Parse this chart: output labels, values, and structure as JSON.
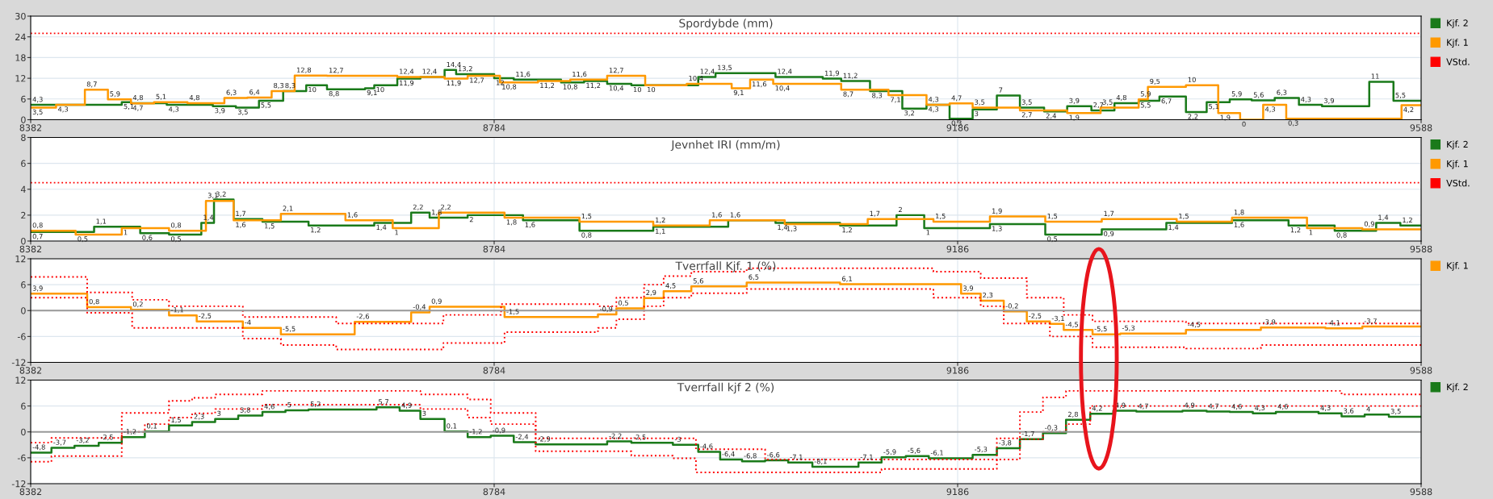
{
  "chart_data": [
    {
      "type": "step",
      "title": "Spordybde (mm)",
      "xlim": [
        8382,
        9588
      ],
      "xticks": [
        8382,
        8784,
        9186,
        9588
      ],
      "ylim": [
        0,
        30
      ],
      "yticks": [
        0,
        6,
        12,
        18,
        24,
        30
      ],
      "grid": true,
      "legend": "right",
      "ref_lines": [
        {
          "axis": "y",
          "value": 25,
          "label": "VStd.",
          "color": "#ff0000",
          "line_style": "dotted"
        }
      ],
      "series": [
        {
          "name": "Kjf. 2",
          "color": "#1a7a1a",
          "line_style": "solid",
          "x": [
            8382,
            8461,
            8469,
            8500,
            8540,
            8560,
            8580,
            8601,
            8621,
            8639,
            8672,
            8680,
            8700,
            8720,
            8741,
            8751,
            8784,
            8801,
            8842,
            8862,
            8882,
            8903,
            8961,
            8976,
            9028,
            9069,
            9085,
            9110,
            9138,
            9159,
            9179,
            9199,
            9220,
            9240,
            9261,
            9281,
            9302,
            9322,
            9343,
            9361,
            9384,
            9402,
            9422,
            9441,
            9461,
            9482,
            9502,
            9543,
            9564,
            9588
          ],
          "values": [
            4.3,
            5.1,
            4.8,
            4.3,
            3.9,
            3.5,
            5.5,
            8.3,
            10,
            8.8,
            9.1,
            10,
            11.9,
            12.4,
            14.4,
            13.2,
            12,
            11.6,
            10.8,
            11.2,
            10.4,
            10,
            12.4,
            13.5,
            12.4,
            11.9,
            11.2,
            8.3,
            3.2,
            4.3,
            0.3,
            3,
            7,
            3.5,
            2.4,
            3.9,
            2.7,
            4.8,
            5.5,
            6.7,
            2.2,
            5.1,
            5.9,
            5.6,
            6.3,
            4.3,
            3.9,
            11,
            5.5,
            5.5
          ],
          "value_labels": [
            "4,3",
            "5,1",
            "4,8",
            "4,3",
            "3,9",
            "3,5",
            "5,5",
            "8,3",
            "10",
            "8,8",
            "9,1",
            "10",
            "11,9",
            "12,4",
            "14,4",
            "13,2",
            "12",
            "11,6",
            "10,8",
            "11,2",
            "10,4",
            "10",
            "12,4",
            "13,5",
            "12,4",
            "11,9",
            "11,2",
            "8,3",
            "3,2",
            "4,3",
            "0,3",
            "3",
            "7",
            "3,5",
            "2,4",
            "3,9",
            "2,7",
            "4,8",
            "5,5",
            "6,7",
            "2,2",
            "5,1",
            "5,9",
            "5,6",
            "6,3",
            "4,3",
            "3,9",
            "11",
            "5,5",
            null
          ]
        },
        {
          "name": "Kjf. 1",
          "color": "#ff9900",
          "line_style": "solid",
          "x": [
            8382,
            8404,
            8429,
            8449,
            8469,
            8489,
            8518,
            8550,
            8570,
            8591,
            8611,
            8639,
            8700,
            8741,
            8761,
            8789,
            8822,
            8850,
            8882,
            8915,
            8951,
            8990,
            9006,
            9026,
            9085,
            9126,
            9159,
            9179,
            9199,
            9240,
            9281,
            9310,
            9343,
            9351,
            9384,
            9412,
            9431,
            9451,
            9471,
            9571,
            9588
          ],
          "values": [
            3.5,
            4.3,
            8.7,
            5.9,
            4.7,
            5.1,
            4.8,
            6.3,
            6.4,
            8.3,
            12.8,
            12.7,
            12.4,
            11.9,
            12.7,
            10.8,
            11.2,
            11.6,
            12.7,
            10,
            10.4,
            9.1,
            11.6,
            10.4,
            8.7,
            7.1,
            4.3,
            4.7,
            3.5,
            2.7,
            1.9,
            3.5,
            5.9,
            9.5,
            10,
            1.9,
            0,
            4.3,
            0.3,
            4.2,
            4.2
          ],
          "value_labels": [
            "3,5",
            "4,3",
            "8,7",
            "5,9",
            "4,7",
            "5,1",
            "4,8",
            "6,3",
            "6,4",
            "8,3",
            "12,8",
            "12,7",
            "12,4",
            "11,9",
            "12,7",
            "10,8",
            "11,2",
            "11,6",
            "12,7",
            "10",
            "10,4",
            "9,1",
            "11,6",
            "10,4",
            "8,7",
            "7,1",
            "4,3",
            "4,7",
            "3,5",
            "2,7",
            "1,9",
            "3,5",
            "5,9",
            "9,5",
            "10",
            "1,9",
            "0",
            "4,3",
            "0,3",
            "4,2",
            null
          ]
        }
      ]
    },
    {
      "type": "step",
      "title": "Jevnhet IRI (mm/m)",
      "xlim": [
        8382,
        9588
      ],
      "xticks": [
        8382,
        8784,
        9186,
        9588
      ],
      "ylim": [
        0,
        8
      ],
      "yticks": [
        0,
        2,
        4,
        6,
        8
      ],
      "grid": true,
      "legend": "right",
      "ref_lines": [
        {
          "axis": "y",
          "value": 4.5,
          "label": "VStd.",
          "color": "#ff0000",
          "line_style": "dotted"
        }
      ],
      "series": [
        {
          "name": "Kjf. 2",
          "color": "#1a7a1a",
          "line_style": "solid",
          "x": [
            8382,
            8437,
            8477,
            8502,
            8530,
            8541,
            8558,
            8583,
            8623,
            8680,
            8712,
            8728,
            8761,
            8809,
            8858,
            8922,
            8987,
            9028,
            9084,
            9133,
            9157,
            9214,
            9262,
            9311,
            9367,
            9424,
            9473,
            9513,
            9549,
            9570,
            9588
          ],
          "values": [
            0.7,
            1.1,
            0.6,
            0.5,
            1.4,
            3.2,
            1.7,
            1.5,
            1.2,
            1.4,
            2.2,
            1.8,
            2,
            1.6,
            0.8,
            1.1,
            1.6,
            1.4,
            1.2,
            2,
            1,
            1.3,
            0.5,
            0.9,
            1.4,
            1.6,
            1.2,
            0.8,
            1.4,
            1.2,
            1.2
          ],
          "value_labels": [
            "0,7",
            "1,1",
            "0,6",
            "0,5",
            "1,4",
            "3,2",
            "1,7",
            "1,5",
            "1,2",
            "1,4",
            "2,2",
            "1,8",
            "2",
            "1,6",
            "0,8",
            "1,1",
            "1,6",
            "1,4",
            "1,2",
            "2",
            "1",
            "1,3",
            "0,5",
            "0,9",
            "1,4",
            "1,6",
            "1,2",
            "0,8",
            "1,4",
            "1,2",
            null
          ]
        },
        {
          "name": "Kjf. 1",
          "color": "#ff9900",
          "line_style": "solid",
          "x": [
            8382,
            8421,
            8461,
            8502,
            8534,
            8558,
            8599,
            8655,
            8696,
            8736,
            8793,
            8858,
            8922,
            8971,
            9036,
            9108,
            9165,
            9214,
            9262,
            9311,
            9376,
            9424,
            9489,
            9537,
            9588
          ],
          "values": [
            0.8,
            0.5,
            1,
            0.8,
            3.1,
            1.6,
            2.1,
            1.6,
            1,
            2.2,
            1.8,
            1.5,
            1.2,
            1.6,
            1.3,
            1.7,
            1.5,
            1.9,
            1.5,
            1.7,
            1.5,
            1.8,
            1,
            0.9,
            0.9
          ],
          "value_labels": [
            "0,8",
            "0,5",
            "1",
            "0,8",
            "3,1",
            "1,6",
            "2,1",
            "1,6",
            "1",
            "2,2",
            "1,8",
            "1,5",
            "1,2",
            "1,6",
            "1,3",
            "1,7",
            "1,5",
            "1,9",
            "1,5",
            "1,7",
            "1,5",
            "1,8",
            "1",
            "0,9",
            null
          ]
        }
      ]
    },
    {
      "type": "step",
      "title": "Tverrfall Kjf. 1 (%)",
      "xlim": [
        8382,
        9588
      ],
      "xticks": [
        8382,
        8784,
        9186,
        9588
      ],
      "ylim": [
        -12,
        12
      ],
      "yticks": [
        -12,
        -6,
        0,
        6,
        12
      ],
      "grid": true,
      "legend": "right",
      "ref_lines": [
        {
          "axis": "y",
          "value": 0,
          "color": "#999999",
          "line_style": "solid"
        }
      ],
      "series": [
        {
          "name": "Kjf. 1",
          "color": "#ff9900",
          "line_style": "solid",
          "x": [
            8382,
            8431,
            8469,
            8502,
            8526,
            8566,
            8599,
            8663,
            8712,
            8728,
            8793,
            8874,
            8890,
            8914,
            8931,
            8955,
            9003,
            9084,
            9189,
            9206,
            9226,
            9246,
            9266,
            9278,
            9303,
            9327,
            9384,
            9449,
            9505,
            9537,
            9588
          ],
          "values": [
            3.9,
            0.8,
            0.2,
            -1.1,
            -2.5,
            -4,
            -5.5,
            -2.6,
            -0.4,
            0.9,
            -1.5,
            -0.9,
            0.5,
            2.9,
            4.5,
            5.6,
            6.5,
            6.1,
            3.9,
            2.3,
            -0.2,
            -2.5,
            -3.1,
            -4.5,
            -5.5,
            -5.3,
            -4.5,
            -3.9,
            -4.1,
            -3.7,
            -3.7
          ],
          "value_labels": [
            "3,9",
            "0,8",
            "0,2",
            "-1,1",
            "-2,5",
            "-4",
            "-5,5",
            "-2,6",
            "-0,4",
            "0,9",
            "-1,5",
            "-0,9",
            "0,5",
            "2,9",
            "4,5",
            "5,6",
            "6,5",
            "6,1",
            "3,9",
            "2,3",
            "-0,2",
            "-2,5",
            "-3,1",
            "-4,5",
            "-5,5",
            "-5,3",
            "-4,5",
            "-3,9",
            "-4,1",
            "-3,7",
            null
          ]
        },
        {
          "color": "#ff0000",
          "line_style": "dotted",
          "x": [
            8382,
            8431,
            8470,
            8502,
            8566,
            8647,
            8740,
            8790,
            8874,
            8890,
            8914,
            8931,
            8955,
            9003,
            9165,
            9206,
            9246,
            9278,
            9303,
            9384,
            9588
          ],
          "values": [
            7.8,
            4.2,
            2.5,
            1,
            -1.5,
            -3,
            -1,
            1.5,
            1,
            3,
            6,
            8,
            9,
            9.8,
            9,
            7.5,
            3,
            -1,
            -2.5,
            -3,
            -3
          ]
        },
        {
          "color": "#ff0000",
          "line_style": "dotted",
          "x": [
            8382,
            8431,
            8470,
            8566,
            8599,
            8647,
            8740,
            8793,
            8874,
            8890,
            8914,
            8931,
            8955,
            9003,
            9165,
            9206,
            9226,
            9266,
            9303,
            9384,
            9449,
            9588
          ],
          "values": [
            3,
            -0.5,
            -4,
            -6.5,
            -8,
            -9,
            -7.5,
            -5,
            -4,
            -2,
            1,
            3,
            4,
            5,
            3,
            1,
            -3,
            -6,
            -8.5,
            -8.8,
            -8,
            -8
          ]
        }
      ]
    },
    {
      "type": "step",
      "title": "Tverrfall kjf 2 (%)",
      "xlim": [
        8382,
        9588
      ],
      "xticks": [
        8382,
        8784,
        9186,
        9588
      ],
      "ylim": [
        -12,
        12
      ],
      "yticks": [
        -12,
        -6,
        0,
        6,
        12
      ],
      "grid": true,
      "legend": "right",
      "ref_lines": [
        {
          "axis": "y",
          "value": 0,
          "color": "#999999",
          "line_style": "solid"
        }
      ],
      "series": [
        {
          "name": "Kjf. 2",
          "color": "#1a7a1a",
          "line_style": "solid",
          "x": [
            8382,
            8400,
            8420,
            8441,
            8461,
            8481,
            8502,
            8522,
            8542,
            8562,
            8583,
            8603,
            8623,
            8682,
            8702,
            8720,
            8741,
            8761,
            8781,
            8801,
            8820,
            8882,
            8903,
            8939,
            8961,
            8980,
            8999,
            9019,
            9039,
            9060,
            9100,
            9120,
            9141,
            9161,
            9199,
            9220,
            9240,
            9260,
            9280,
            9301,
            9321,
            9341,
            9381,
            9402,
            9422,
            9442,
            9462,
            9499,
            9519,
            9539,
            9560,
            9588
          ],
          "values": [
            -4.8,
            -3.7,
            -3.2,
            -2.5,
            -1.2,
            0.1,
            1.5,
            2.3,
            3,
            3.8,
            4.6,
            5,
            5.2,
            5.7,
            4.9,
            3,
            0.1,
            -1.2,
            -0.9,
            -2.4,
            -2.9,
            -2.2,
            -2.5,
            -3,
            -4.6,
            -6.4,
            -6.8,
            -6.6,
            -7.1,
            -8.1,
            -7.1,
            -5.9,
            -5.6,
            -6.1,
            -5.3,
            -3.8,
            -1.7,
            -0.3,
            2.8,
            4.2,
            4.9,
            4.7,
            4.9,
            4.7,
            4.6,
            4.3,
            4.6,
            4.3,
            3.6,
            4,
            3.5,
            3.5
          ],
          "value_labels": [
            "-4,8",
            "-3,7",
            "-3,2",
            "-2,5",
            "-1,2",
            "0,1",
            "1,5",
            "2,3",
            "3",
            "3,8",
            "4,6",
            "5",
            "5,2",
            "5,7",
            "4,9",
            "3",
            "0,1",
            "-1,2",
            "-0,9",
            "-2,4",
            "-2,9",
            "-2,2",
            "-2,5",
            "-3",
            "-4,6",
            "-6,4",
            "-6,8",
            "-6,6",
            "-7,1",
            "-8,1",
            "-7,1",
            "-5,9",
            "-5,6",
            "-6,1",
            "-5,3",
            "-3,8",
            "-1,7",
            "-0,3",
            "2,8",
            "4,2",
            "4,9",
            "4,7",
            "4,9",
            "4,7",
            "4,6",
            "4,3",
            "4,6",
            "4,3",
            "3,6",
            "4",
            "3,5",
            null
          ]
        },
        {
          "color": "#ff0000",
          "line_style": "dotted",
          "x": [
            8382,
            8400,
            8461,
            8502,
            8522,
            8542,
            8583,
            8720,
            8761,
            8781,
            8820,
            8959,
            9019,
            9220,
            9240,
            9260,
            9280,
            9519,
            9588
          ],
          "values": [
            -2.5,
            -1.4,
            4.4,
            7.2,
            7.9,
            8.7,
            9.5,
            8.7,
            7.5,
            4.4,
            -1.5,
            -4,
            -6.4,
            -1.5,
            4.6,
            8,
            9.5,
            8.7,
            8.7
          ]
        },
        {
          "color": "#ff0000",
          "line_style": "dotted",
          "x": [
            8382,
            8400,
            8461,
            8481,
            8502,
            8522,
            8542,
            8583,
            8720,
            8761,
            8781,
            8820,
            8903,
            8939,
            8959,
            9120,
            9220,
            9240,
            9260,
            9280,
            9301,
            9588
          ],
          "values": [
            -6.9,
            -5.6,
            0,
            1.8,
            3.3,
            4.3,
            5.3,
            6.3,
            5.3,
            3.3,
            1.8,
            -4.5,
            -5.5,
            -6.1,
            -9.4,
            -8.6,
            -6.4,
            -1.7,
            0,
            1.8,
            6,
            6
          ]
        }
      ]
    }
  ]
}
